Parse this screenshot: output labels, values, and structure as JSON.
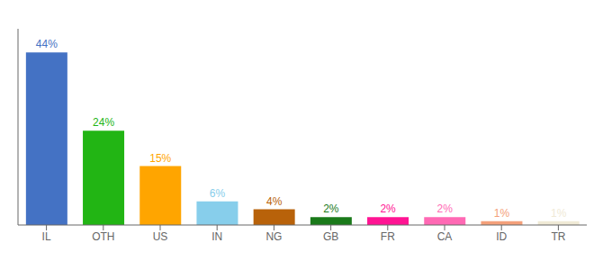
{
  "chart_data": {
    "type": "bar",
    "categories": [
      "IL",
      "OTH",
      "US",
      "IN",
      "NG",
      "GB",
      "FR",
      "CA",
      "ID",
      "TR"
    ],
    "values": [
      44,
      24,
      15,
      6,
      4,
      2,
      2,
      2,
      1,
      1
    ],
    "value_labels": [
      "44%",
      "24%",
      "15%",
      "6%",
      "4%",
      "2%",
      "2%",
      "2%",
      "1%",
      "1%"
    ],
    "data_labels": true,
    "colors": [
      "#4472c4",
      "#22b514",
      "#ffa500",
      "#87ceeb",
      "#b8620a",
      "#1a7a1a",
      "#ff1493",
      "#ff69b4",
      "#f4a07a",
      "#f0ead6"
    ],
    "ylim": [
      0,
      50
    ],
    "tick_labels": "x",
    "grid": false
  }
}
